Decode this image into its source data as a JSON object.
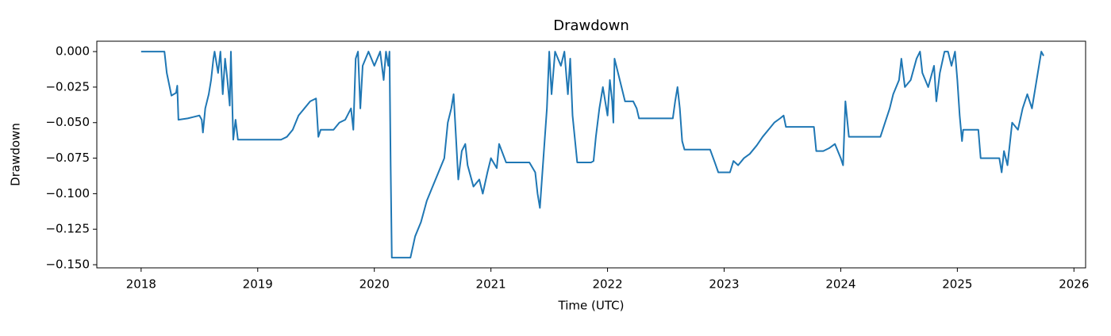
{
  "chart_data": {
    "type": "line",
    "title": "Drawdown",
    "xlabel": "Time (UTC)",
    "ylabel": "Drawdown",
    "color": "#1f77b4",
    "xlim": [
      2017.62,
      2026.1
    ],
    "ylim": [
      -0.1522,
      0.0073
    ],
    "xticks": [
      2018,
      2019,
      2020,
      2021,
      2022,
      2023,
      2024,
      2025,
      2026
    ],
    "yticks": [
      {
        "value": 0,
        "label": "0.000"
      },
      {
        "value": -0.025,
        "label": "−0.025"
      },
      {
        "value": -0.05,
        "label": "−0.050"
      },
      {
        "value": -0.075,
        "label": "−0.075"
      },
      {
        "value": -0.1,
        "label": "−0.100"
      },
      {
        "value": -0.125,
        "label": "−0.125"
      },
      {
        "value": -0.15,
        "label": "−0.150"
      }
    ],
    "x": [
      2018.0,
      2018.2,
      2018.22,
      2018.26,
      2018.3,
      2018.31,
      2018.32,
      2018.4,
      2018.45,
      2018.5,
      2018.52,
      2018.53,
      2018.55,
      2018.58,
      2018.6,
      2018.62,
      2018.63,
      2018.66,
      2018.68,
      2018.7,
      2018.72,
      2018.74,
      2018.76,
      2018.77,
      2018.79,
      2018.81,
      2018.83,
      2019.2,
      2019.25,
      2019.3,
      2019.35,
      2019.4,
      2019.45,
      2019.5,
      2019.52,
      2019.54,
      2019.65,
      2019.7,
      2019.75,
      2019.8,
      2019.82,
      2019.84,
      2019.86,
      2019.88,
      2019.9,
      2019.95,
      2020.0,
      2020.05,
      2020.08,
      2020.1,
      2020.12,
      2020.13,
      2020.14,
      2020.15,
      2020.31,
      2020.35,
      2020.4,
      2020.45,
      2020.5,
      2020.55,
      2020.6,
      2020.63,
      2020.66,
      2020.68,
      2020.72,
      2020.75,
      2020.78,
      2020.8,
      2020.85,
      2020.9,
      2020.93,
      2020.97,
      2021.0,
      2021.05,
      2021.07,
      2021.13,
      2021.33,
      2021.38,
      2021.4,
      2021.42,
      2021.45,
      2021.48,
      2021.5,
      2021.52,
      2021.55,
      2021.6,
      2021.63,
      2021.66,
      2021.68,
      2021.7,
      2021.74,
      2021.86,
      2021.88,
      2021.9,
      2021.93,
      2021.96,
      2022.0,
      2022.02,
      2022.04,
      2022.05,
      2022.06,
      2022.12,
      2022.15,
      2022.22,
      2022.25,
      2022.27,
      2022.56,
      2022.58,
      2022.6,
      2022.62,
      2022.64,
      2022.66,
      2022.88,
      2022.92,
      2022.95,
      2023.05,
      2023.08,
      2023.12,
      2023.17,
      2023.22,
      2023.28,
      2023.33,
      2023.38,
      2023.43,
      2023.48,
      2023.51,
      2023.53,
      2023.77,
      2023.79,
      2023.85,
      2023.9,
      2023.95,
      2024.0,
      2024.02,
      2024.04,
      2024.07,
      2024.34,
      2024.38,
      2024.42,
      2024.45,
      2024.5,
      2024.52,
      2024.55,
      2024.6,
      2024.65,
      2024.68,
      2024.7,
      2024.75,
      2024.8,
      2024.82,
      2024.85,
      2024.89,
      2024.92,
      2024.95,
      2024.98,
      2025.0,
      2025.02,
      2025.04,
      2025.05,
      2025.18,
      2025.2,
      2025.36,
      2025.38,
      2025.4,
      2025.43,
      2025.47,
      2025.52,
      2025.56,
      2025.6,
      2025.64,
      2025.68,
      2025.72,
      2025.74
    ],
    "values": [
      0,
      0,
      -0.015,
      -0.031,
      -0.029,
      -0.024,
      -0.048,
      -0.047,
      -0.046,
      -0.045,
      -0.048,
      -0.057,
      -0.04,
      -0.03,
      -0.02,
      -0.005,
      0,
      -0.015,
      0,
      -0.03,
      -0.005,
      -0.02,
      -0.038,
      0,
      -0.062,
      -0.048,
      -0.062,
      -0.062,
      -0.06,
      -0.055,
      -0.045,
      -0.04,
      -0.035,
      -0.033,
      -0.06,
      -0.055,
      -0.055,
      -0.05,
      -0.048,
      -0.04,
      -0.055,
      -0.005,
      0,
      -0.04,
      -0.01,
      0,
      -0.01,
      0,
      -0.02,
      0,
      -0.01,
      0,
      -0.08,
      -0.145,
      -0.145,
      -0.13,
      -0.12,
      -0.105,
      -0.095,
      -0.085,
      -0.075,
      -0.05,
      -0.04,
      -0.03,
      -0.09,
      -0.07,
      -0.065,
      -0.08,
      -0.095,
      -0.09,
      -0.1,
      -0.085,
      -0.075,
      -0.082,
      -0.065,
      -0.078,
      -0.078,
      -0.085,
      -0.1,
      -0.11,
      -0.075,
      -0.04,
      0,
      -0.03,
      0,
      -0.01,
      0,
      -0.03,
      -0.005,
      -0.045,
      -0.078,
      -0.078,
      -0.077,
      -0.06,
      -0.04,
      -0.025,
      -0.045,
      -0.02,
      -0.035,
      -0.05,
      -0.005,
      -0.025,
      -0.035,
      -0.035,
      -0.04,
      -0.047,
      -0.047,
      -0.035,
      -0.025,
      -0.04,
      -0.063,
      -0.069,
      -0.069,
      -0.078,
      -0.085,
      -0.085,
      -0.077,
      -0.08,
      -0.075,
      -0.072,
      -0.066,
      -0.06,
      -0.055,
      -0.05,
      -0.047,
      -0.045,
      -0.053,
      -0.053,
      -0.07,
      -0.07,
      -0.068,
      -0.065,
      -0.075,
      -0.08,
      -0.035,
      -0.06,
      -0.06,
      -0.05,
      -0.04,
      -0.03,
      -0.02,
      -0.005,
      -0.025,
      -0.02,
      -0.005,
      0,
      -0.015,
      -0.025,
      -0.01,
      -0.035,
      -0.015,
      0,
      0,
      -0.01,
      0,
      -0.02,
      -0.045,
      -0.063,
      -0.055,
      -0.055,
      -0.075,
      -0.075,
      -0.085,
      -0.07,
      -0.08,
      -0.05,
      -0.055,
      -0.04,
      -0.03,
      -0.04,
      -0.02,
      0,
      -0.003
    ]
  }
}
